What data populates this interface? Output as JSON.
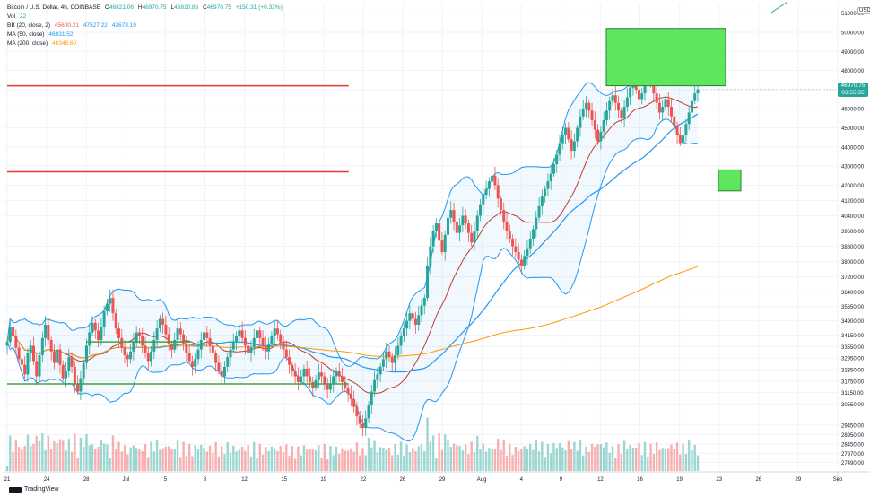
{
  "legend": {
    "title": "Bitcoin / U.S. Dollar, 4h, COINBASE",
    "ohlc": {
      "o_label": "O",
      "o": "46821.06",
      "h_label": "H",
      "h": "46970.75",
      "l_label": "L",
      "l": "46810.86",
      "c_label": "C",
      "c": "46970.75",
      "change": "+150.31 (+0.32%)"
    },
    "vol_label": "Vol",
    "vol": "22",
    "bb_label": "BB (20, close, 2)",
    "bb_values": [
      "45600.21",
      "47527.22",
      "43673.19"
    ],
    "ma50_label": "MA (50, close)",
    "ma50_value": "46031.52",
    "ma200_label": "MA (200, close)",
    "ma200_value": "40348.60"
  },
  "price_tag": {
    "price": "46970.75",
    "countdown": "03:55:35"
  },
  "currency": "USD",
  "branding": "TradingView",
  "colors": {
    "up": "#26a69a",
    "down": "#ef5350",
    "bb": "#2196f3",
    "ma50": "#2196f3",
    "ma200": "#ff9800",
    "resistance": "#e53935",
    "support": "#43a047",
    "zone": "#5ee65e"
  },
  "chart_data": {
    "type": "candlestick",
    "symbol": "BTCUSD",
    "interval": "4h",
    "x_ticks": [
      "21",
      "24",
      "28",
      "Jul",
      "5",
      "8",
      "12",
      "15",
      "19",
      "22",
      "26",
      "29",
      "Aug",
      "4",
      "9",
      "12",
      "16",
      "19",
      "23",
      "26",
      "29",
      "Sep"
    ],
    "y_ticks": [
      27490,
      27970,
      28450,
      28950,
      29450,
      30550,
      31150,
      31750,
      32350,
      32950,
      33550,
      34150,
      34900,
      35650,
      36400,
      37200,
      38000,
      38800,
      39600,
      40400,
      41200,
      42000,
      43000,
      44000,
      45000,
      46000,
      47000,
      48000,
      49000,
      50000,
      51000
    ],
    "ylim": [
      27000,
      51500
    ],
    "horizontal_lines": [
      {
        "price": 47200,
        "color": "red",
        "from_x_tick": "21",
        "to_x_tick": "19"
      },
      {
        "price": 42700,
        "color": "red",
        "from_x_tick": "21",
        "to_x_tick": "19"
      },
      {
        "price": 31600,
        "color": "green",
        "from_x_tick": "21",
        "to_x_tick": "19"
      },
      {
        "price": 33800,
        "color": "green",
        "from_x_tick": "28",
        "to_x_tick": "5"
      }
    ],
    "zones": [
      {
        "price_low": 47200,
        "price_high": 50200,
        "color": "green"
      },
      {
        "price_low": 41700,
        "price_high": 42800,
        "color": "green"
      }
    ],
    "candles_close": [
      33800,
      34600,
      34100,
      33500,
      32900,
      32600,
      32100,
      33200,
      33600,
      32800,
      32000,
      33100,
      34000,
      34700,
      33900,
      33300,
      32700,
      33400,
      32600,
      31900,
      32300,
      33000,
      32500,
      31600,
      31200,
      31900,
      32700,
      33600,
      34300,
      34800,
      34400,
      33900,
      34600,
      35400,
      35800,
      36100,
      35300,
      34500,
      34000,
      33500,
      33100,
      32900,
      33300,
      33800,
      34300,
      34100,
      33600,
      33200,
      32800,
      33300,
      33900,
      34500,
      35000,
      34700,
      34200,
      33700,
      33400,
      33900,
      34500,
      34200,
      33700,
      33200,
      32800,
      32500,
      32900,
      33400,
      33900,
      34300,
      34000,
      33600,
      33200,
      32700,
      32300,
      32000,
      32500,
      33000,
      33400,
      33800,
      34100,
      34400,
      34000,
      33600,
      33200,
      33500,
      34000,
      34400,
      34000,
      33600,
      33300,
      33700,
      34100,
      34500,
      34200,
      33800,
      33400,
      33000,
      32600,
      32300,
      32000,
      31700,
      32000,
      32400,
      32000,
      31700,
      31400,
      31800,
      32200,
      32000,
      31600,
      31300,
      31600,
      32000,
      32300,
      32000,
      31700,
      31400,
      31100,
      30800,
      30400,
      29900,
      29500,
      29300,
      29800,
      30500,
      31200,
      31800,
      32100,
      32500,
      32900,
      33300,
      33000,
      32700,
      33100,
      33600,
      34100,
      34500,
      34900,
      35300,
      35000,
      34700,
      35200,
      35700,
      36100,
      37800,
      38800,
      39600,
      40000,
      39100,
      38500,
      39400,
      40300,
      40700,
      40100,
      39500,
      39900,
      40400,
      40000,
      39500,
      39000,
      39600,
      40400,
      41000,
      41500,
      41800,
      42200,
      42500,
      42000,
      41300,
      40700,
      40100,
      39600,
      39200,
      38800,
      38500,
      38100,
      37800,
      38300,
      38700,
      39200,
      39700,
      40300,
      40900,
      41400,
      41800,
      42200,
      42600,
      43100,
      43600,
      44200,
      44600,
      45000,
      44400,
      43800,
      44300,
      45000,
      45600,
      46000,
      46300,
      45900,
      45400,
      44900,
      44300,
      44800,
      45400,
      45900,
      46400,
      46700,
      46300,
      45900,
      45500,
      46100,
      46600,
      47100,
      47500,
      47000,
      46500,
      46800,
      47300,
      47700,
      47300,
      46800,
      46300,
      45800,
      46100,
      46500,
      46100,
      45600,
      45100,
      44600,
      44200,
      44600,
      45200,
      45800,
      46400,
      46800,
      47000
    ]
  }
}
